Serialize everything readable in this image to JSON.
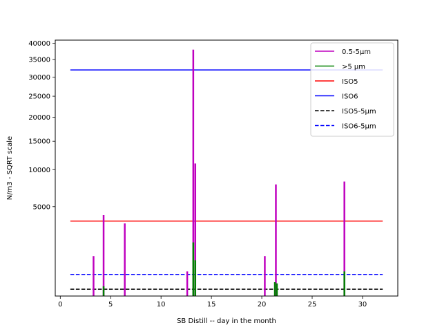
{
  "chart_data": {
    "type": "line",
    "xlabel": "SB Distill -- day in the month",
    "ylabel": "N/m3 - SQRT scale",
    "y_scale": "sqrt",
    "xlim": [
      -0.5,
      33.5
    ],
    "ylim": [
      0,
      41000
    ],
    "x_ticks": [
      0,
      5,
      10,
      15,
      20,
      25,
      30
    ],
    "x_tick_labels": [
      "0",
      "5",
      "10",
      "15",
      "20",
      "25",
      "30"
    ],
    "y_ticks": [
      5000,
      10000,
      15000,
      20000,
      25000,
      30000,
      35000,
      40000
    ],
    "y_tick_labels": [
      "5000",
      "10000",
      "15000",
      "20000",
      "25000",
      "30000",
      "35000",
      "40000"
    ],
    "legend_position": "top-right",
    "series": [
      {
        "name": "0.5-5µm",
        "color": "#bf00bf",
        "style": "solid",
        "kind": "spikes",
        "points": [
          {
            "x": 3.3,
            "y": 1000
          },
          {
            "x": 4.3,
            "y": 4100
          },
          {
            "x": 6.4,
            "y": 3300
          },
          {
            "x": 12.6,
            "y": 380
          },
          {
            "x": 13.2,
            "y": 38000
          },
          {
            "x": 13.4,
            "y": 11000
          },
          {
            "x": 20.3,
            "y": 1000
          },
          {
            "x": 21.4,
            "y": 7800
          },
          {
            "x": 28.2,
            "y": 8200
          }
        ]
      },
      {
        "name": ">5 µm",
        "color": "#008000",
        "style": "solid",
        "kind": "spikes",
        "points": [
          {
            "x": 4.3,
            "y": 60
          },
          {
            "x": 13.2,
            "y": 1800
          },
          {
            "x": 13.4,
            "y": 800
          },
          {
            "x": 21.3,
            "y": 120
          },
          {
            "x": 21.5,
            "y": 100
          },
          {
            "x": 28.2,
            "y": 380
          }
        ]
      },
      {
        "name": "ISO5",
        "color": "#ff0000",
        "style": "solid",
        "kind": "hline",
        "x_range": [
          1,
          32
        ],
        "y": 3520
      },
      {
        "name": "ISO6",
        "color": "#0000ff",
        "style": "solid",
        "kind": "hline",
        "x_range": [
          1,
          32
        ],
        "y": 32000
      },
      {
        "name": "ISO5-5µm",
        "color": "#000000",
        "style": "dashed",
        "kind": "hline",
        "x_range": [
          1,
          32
        ],
        "y": 29
      },
      {
        "name": "ISO6-5µm",
        "color": "#0000ff",
        "style": "dashed",
        "kind": "hline",
        "x_range": [
          1,
          32
        ],
        "y": 293
      }
    ]
  }
}
